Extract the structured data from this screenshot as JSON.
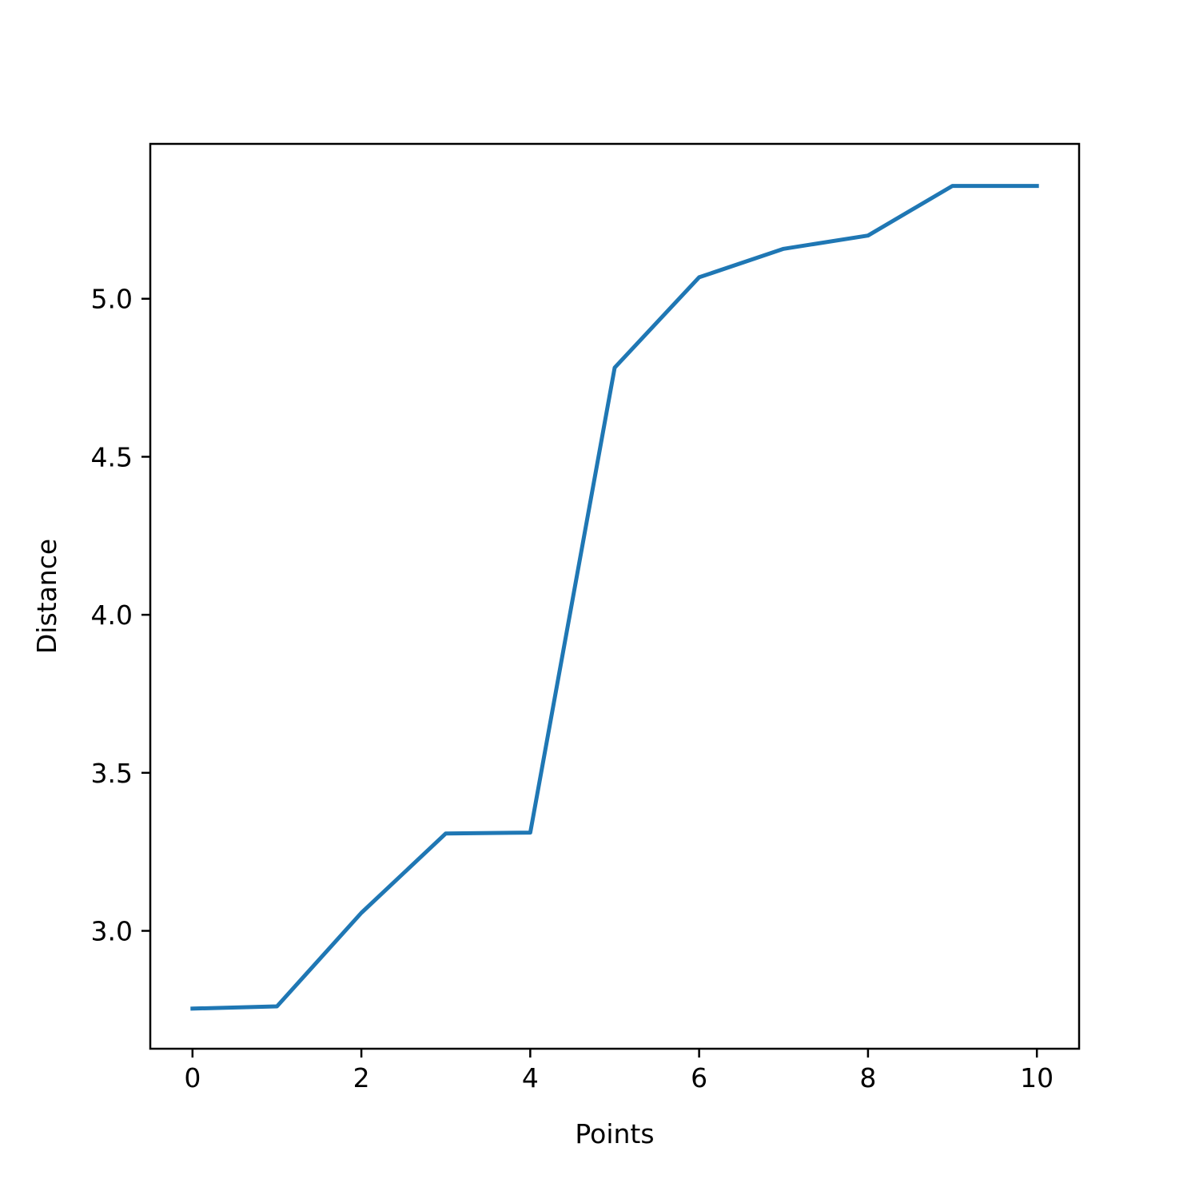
{
  "chart_data": {
    "type": "line",
    "title": "",
    "xlabel": "Points",
    "ylabel": "Distance",
    "xlim": [
      -0.5,
      10.5
    ],
    "ylim": [
      2.627,
      5.49
    ],
    "xticks": [
      0,
      2,
      4,
      6,
      8,
      10
    ],
    "xtick_labels": [
      "0",
      "2",
      "4",
      "6",
      "8",
      "10"
    ],
    "yticks": [
      3.0,
      3.5,
      4.0,
      4.5,
      5.0
    ],
    "ytick_labels": [
      "3.0",
      "3.5",
      "4.0",
      "4.5",
      "5.0"
    ],
    "grid": false,
    "legend": "none",
    "series": [
      {
        "color": "#1f77b4",
        "x": [
          0,
          1,
          2,
          3,
          4,
          5,
          6,
          7,
          8,
          9,
          10
        ],
        "y": [
          2.754,
          2.761,
          3.057,
          3.308,
          3.311,
          4.782,
          5.068,
          5.158,
          5.2,
          5.357,
          5.357
        ]
      }
    ]
  }
}
